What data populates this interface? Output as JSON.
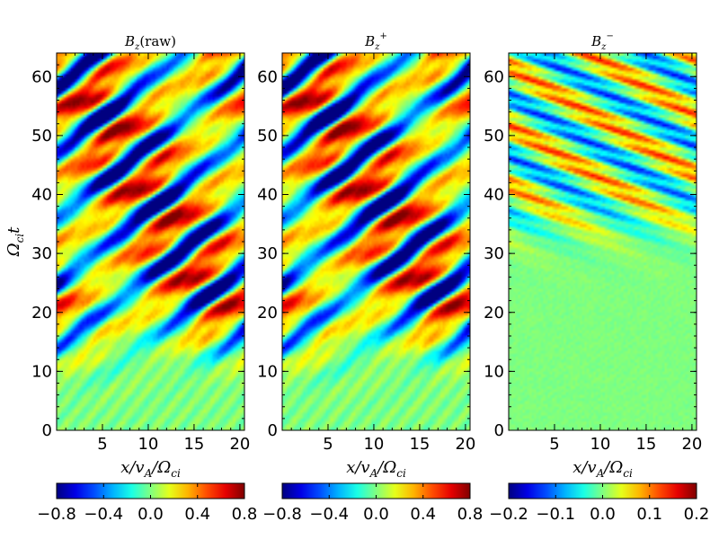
{
  "chart_data": [
    {
      "type": "heatmap",
      "title": "B_z(raw)",
      "title_parts": {
        "base": "B",
        "sub": "z",
        "suffix": "(raw)",
        "sup": ""
      },
      "xlabel": "x/v_A/Ω_ci",
      "ylabel": "Ω_ci t",
      "xlim": [
        0,
        20.5
      ],
      "ylim": [
        0,
        64
      ],
      "x_ticks": [
        5,
        10,
        15,
        20
      ],
      "x_tick_labels": [
        "5",
        "10",
        "15",
        "20"
      ],
      "y_ticks": [
        0,
        10,
        20,
        30,
        40,
        50,
        60
      ],
      "y_tick_labels": [
        "0",
        "10",
        "20",
        "30",
        "40",
        "50",
        "60"
      ],
      "colormap": "jet",
      "color_range": [
        -0.8,
        0.8
      ],
      "colorbar_ticks": [
        -0.8,
        -0.4,
        0.0,
        0.4,
        0.8
      ],
      "colorbar_tick_labels": [
        "−0.8",
        "−0.4",
        "0.0",
        "0.4",
        "0.8"
      ],
      "pattern": "oblique wave bands appearing after t≈15, amplitude up to ±0.8",
      "wave_onset_t": 15,
      "peak_amplitude": 0.8
    },
    {
      "type": "heatmap",
      "title": "B_z^+",
      "title_parts": {
        "base": "B",
        "sub": "z",
        "suffix": "",
        "sup": "+"
      },
      "xlabel": "x/v_A/Ω_ci",
      "xlim": [
        0,
        20.5
      ],
      "ylim": [
        0,
        64
      ],
      "x_ticks": [
        5,
        10,
        15,
        20
      ],
      "x_tick_labels": [
        "5",
        "10",
        "15",
        "20"
      ],
      "y_ticks": [
        0,
        10,
        20,
        30,
        40,
        50,
        60
      ],
      "y_tick_labels": [
        "0",
        "10",
        "20",
        "30",
        "40",
        "50",
        "60"
      ],
      "colormap": "jet",
      "color_range": [
        -0.8,
        0.8
      ],
      "colorbar_ticks": [
        -0.8,
        -0.4,
        0.0,
        0.4,
        0.8
      ],
      "colorbar_tick_labels": [
        "−0.8",
        "−0.4",
        "0.0",
        "0.4",
        "0.8"
      ],
      "pattern": "forward-propagating component, nearly identical to raw field",
      "wave_onset_t": 15,
      "peak_amplitude": 0.8
    },
    {
      "type": "heatmap",
      "title": "B_z^-",
      "title_parts": {
        "base": "B",
        "sub": "z",
        "suffix": "",
        "sup": "−"
      },
      "xlabel": "x/v_A/Ω_ci",
      "xlim": [
        0,
        20.5
      ],
      "ylim": [
        0,
        64
      ],
      "x_ticks": [
        5,
        10,
        15,
        20
      ],
      "x_tick_labels": [
        "5",
        "10",
        "15",
        "20"
      ],
      "y_ticks": [
        0,
        10,
        20,
        30,
        40,
        50,
        60
      ],
      "y_tick_labels": [
        "0",
        "10",
        "20",
        "30",
        "40",
        "50",
        "60"
      ],
      "colormap": "jet",
      "color_range": [
        -0.2,
        0.2
      ],
      "colorbar_ticks": [
        -0.2,
        -0.1,
        0.0,
        0.1,
        0.2
      ],
      "colorbar_tick_labels": [
        "−0.2",
        "−0.1",
        "0.0",
        "0.1",
        "0.2"
      ],
      "pattern": "backward-propagating component, weak fine stripes, bands strengthening after t≈35",
      "wave_onset_t": 35,
      "peak_amplitude": 0.2
    }
  ]
}
